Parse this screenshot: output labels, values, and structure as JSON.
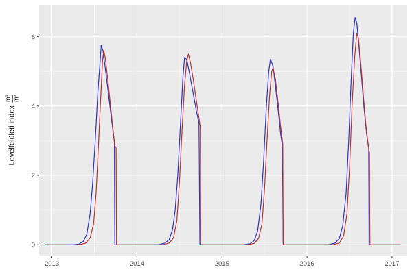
{
  "chart_data": {
    "type": "line",
    "title": "",
    "xlabel": "",
    "ylabel_text": "Levélfelületi index",
    "ylabel_frac_num": "m²",
    "ylabel_frac_den": "m²",
    "xlim": [
      2012.85,
      2017.17
    ],
    "ylim": [
      -0.33,
      6.9
    ],
    "x_ticks": [
      2013,
      2014,
      2015,
      2016,
      2017
    ],
    "x_minor": [
      2013.5,
      2014.5,
      2015.5,
      2016.5
    ],
    "y_ticks": [
      0,
      2,
      4,
      6
    ],
    "y_minor": [
      1,
      3,
      5
    ],
    "grid": true,
    "legend_position": "none",
    "panel_bg": "#ebebeb",
    "grid_major_color": "#ffffff",
    "grid_minor_color": "#f6f6f6",
    "axis_text_color": "#4d4d4d",
    "tick_mark_color": "#333333",
    "series": [
      {
        "name": "blue-line",
        "color": "#2b32cc",
        "points": [
          [
            2012.92,
            0
          ],
          [
            2013.25,
            0
          ],
          [
            2013.32,
            0.02
          ],
          [
            2013.37,
            0.1
          ],
          [
            2013.41,
            0.3
          ],
          [
            2013.45,
            0.9
          ],
          [
            2013.48,
            1.8
          ],
          [
            2013.51,
            3.0
          ],
          [
            2013.54,
            4.4
          ],
          [
            2013.565,
            5.2
          ],
          [
            2013.58,
            5.75
          ],
          [
            2013.6,
            5.6
          ],
          [
            2013.63,
            5.05
          ],
          [
            2013.66,
            4.45
          ],
          [
            2013.69,
            3.85
          ],
          [
            2013.72,
            3.25
          ],
          [
            2013.735,
            2.95
          ],
          [
            2013.74,
            0
          ],
          [
            2014.25,
            0
          ],
          [
            2014.33,
            0.05
          ],
          [
            2014.38,
            0.15
          ],
          [
            2014.42,
            0.45
          ],
          [
            2014.45,
            1.0
          ],
          [
            2014.48,
            2.0
          ],
          [
            2014.51,
            3.4
          ],
          [
            2014.54,
            4.8
          ],
          [
            2014.56,
            5.4
          ],
          [
            2014.585,
            5.35
          ],
          [
            2014.61,
            5.05
          ],
          [
            2014.64,
            4.65
          ],
          [
            2014.67,
            4.25
          ],
          [
            2014.7,
            3.85
          ],
          [
            2014.73,
            3.5
          ],
          [
            2014.74,
            0
          ],
          [
            2015.25,
            0
          ],
          [
            2015.33,
            0.03
          ],
          [
            2015.38,
            0.12
          ],
          [
            2015.42,
            0.4
          ],
          [
            2015.46,
            1.2
          ],
          [
            2015.49,
            2.4
          ],
          [
            2015.52,
            3.9
          ],
          [
            2015.55,
            5.0
          ],
          [
            2015.57,
            5.35
          ],
          [
            2015.6,
            5.15
          ],
          [
            2015.63,
            4.55
          ],
          [
            2015.66,
            3.9
          ],
          [
            2015.69,
            3.2
          ],
          [
            2015.71,
            2.85
          ],
          [
            2015.72,
            0
          ],
          [
            2016.25,
            0
          ],
          [
            2016.33,
            0.05
          ],
          [
            2016.38,
            0.18
          ],
          [
            2016.42,
            0.55
          ],
          [
            2016.46,
            1.5
          ],
          [
            2016.49,
            3.0
          ],
          [
            2016.52,
            4.8
          ],
          [
            2016.545,
            6.1
          ],
          [
            2016.565,
            6.55
          ],
          [
            2016.585,
            6.4
          ],
          [
            2016.61,
            5.75
          ],
          [
            2016.64,
            4.85
          ],
          [
            2016.67,
            3.95
          ],
          [
            2016.7,
            3.2
          ],
          [
            2016.725,
            2.8
          ],
          [
            2016.73,
            0
          ],
          [
            2017.1,
            0
          ]
        ]
      },
      {
        "name": "red-line",
        "color": "#b73333",
        "points": [
          [
            2012.92,
            0
          ],
          [
            2013.32,
            0
          ],
          [
            2013.4,
            0.05
          ],
          [
            2013.45,
            0.2
          ],
          [
            2013.49,
            0.6
          ],
          [
            2013.52,
            1.5
          ],
          [
            2013.55,
            3.0
          ],
          [
            2013.575,
            4.3
          ],
          [
            2013.595,
            5.3
          ],
          [
            2013.61,
            5.6
          ],
          [
            2013.63,
            5.35
          ],
          [
            2013.66,
            4.7
          ],
          [
            2013.69,
            4.0
          ],
          [
            2013.72,
            3.3
          ],
          [
            2013.74,
            2.85
          ],
          [
            2013.755,
            2.8
          ],
          [
            2013.76,
            0
          ],
          [
            2014.3,
            0
          ],
          [
            2014.38,
            0.05
          ],
          [
            2014.43,
            0.2
          ],
          [
            2014.47,
            0.7
          ],
          [
            2014.5,
            1.8
          ],
          [
            2014.53,
            3.3
          ],
          [
            2014.56,
            4.6
          ],
          [
            2014.585,
            5.3
          ],
          [
            2014.605,
            5.5
          ],
          [
            2014.63,
            5.25
          ],
          [
            2014.66,
            4.8
          ],
          [
            2014.69,
            4.3
          ],
          [
            2014.72,
            3.8
          ],
          [
            2014.745,
            3.4
          ],
          [
            2014.75,
            0
          ],
          [
            2015.3,
            0
          ],
          [
            2015.38,
            0.04
          ],
          [
            2015.43,
            0.18
          ],
          [
            2015.47,
            0.6
          ],
          [
            2015.5,
            1.6
          ],
          [
            2015.53,
            3.0
          ],
          [
            2015.56,
            4.3
          ],
          [
            2015.585,
            5.0
          ],
          [
            2015.6,
            5.1
          ],
          [
            2015.63,
            4.75
          ],
          [
            2015.66,
            4.1
          ],
          [
            2015.69,
            3.4
          ],
          [
            2015.715,
            2.9
          ],
          [
            2015.72,
            0
          ],
          [
            2016.3,
            0
          ],
          [
            2016.38,
            0.05
          ],
          [
            2016.43,
            0.25
          ],
          [
            2016.47,
            0.9
          ],
          [
            2016.5,
            2.2
          ],
          [
            2016.53,
            4.0
          ],
          [
            2016.56,
            5.4
          ],
          [
            2016.585,
            6.1
          ],
          [
            2016.605,
            5.95
          ],
          [
            2016.63,
            5.3
          ],
          [
            2016.66,
            4.4
          ],
          [
            2016.69,
            3.5
          ],
          [
            2016.72,
            2.85
          ],
          [
            2016.735,
            2.65
          ],
          [
            2016.74,
            0
          ],
          [
            2017.1,
            0
          ]
        ]
      }
    ]
  }
}
